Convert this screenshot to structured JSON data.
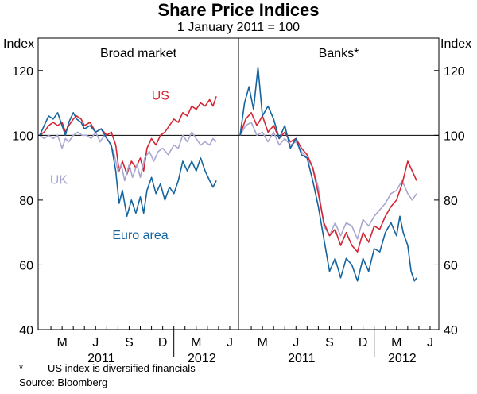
{
  "chart_data": {
    "type": "line",
    "title": "Share Price Indices",
    "subtitle": "1 January 2011 = 100",
    "ylabel_left": "Index",
    "ylabel_right": "Index",
    "ylim": [
      40,
      130
    ],
    "yticks": [
      40,
      60,
      80,
      100,
      120
    ],
    "reference_line": 100,
    "xlim": [
      0,
      17.5
    ],
    "x_unit": "months since 1 January 2011",
    "month_ticks": [
      {
        "label": "M",
        "x": 2
      },
      {
        "label": "J",
        "x": 5
      },
      {
        "label": "S",
        "x": 8
      },
      {
        "label": "D",
        "x": 11
      },
      {
        "label": "M",
        "x": 14
      },
      {
        "label": "J",
        "x": 17
      }
    ],
    "year_labels": [
      {
        "label": "2011",
        "x": 5.5
      },
      {
        "label": "2012",
        "x": 14.5
      }
    ],
    "panels": [
      {
        "title": "Broad market",
        "series": [
          {
            "name": "US",
            "color": "#d62532",
            "points": [
              [
                0,
                100
              ],
              [
                0.4,
                101
              ],
              [
                0.8,
                103
              ],
              [
                1.2,
                104
              ],
              [
                1.6,
                103
              ],
              [
                2,
                104
              ],
              [
                2.3,
                101
              ],
              [
                2.6,
                103
              ],
              [
                3,
                105
              ],
              [
                3.3,
                106
              ],
              [
                3.7,
                105
              ],
              [
                4,
                103
              ],
              [
                4.5,
                104
              ],
              [
                5,
                101
              ],
              [
                5.5,
                102
              ],
              [
                6,
                100
              ],
              [
                6.4,
                101
              ],
              [
                6.8,
                97
              ],
              [
                7.1,
                89
              ],
              [
                7.4,
                92
              ],
              [
                7.8,
                88
              ],
              [
                8.2,
                92
              ],
              [
                8.6,
                90
              ],
              [
                9,
                93
              ],
              [
                9.3,
                89
              ],
              [
                9.6,
                96
              ],
              [
                10,
                99
              ],
              [
                10.4,
                97
              ],
              [
                10.8,
                100
              ],
              [
                11.2,
                101
              ],
              [
                11.6,
                103
              ],
              [
                12,
                105
              ],
              [
                12.4,
                104
              ],
              [
                12.8,
                107
              ],
              [
                13.2,
                106
              ],
              [
                13.6,
                109
              ],
              [
                14,
                108
              ],
              [
                14.4,
                110
              ],
              [
                14.8,
                109
              ],
              [
                15.2,
                111
              ],
              [
                15.5,
                109
              ],
              [
                15.8,
                112
              ]
            ],
            "label": {
              "text": "US",
              "x": 10.8,
              "y": 111
            }
          },
          {
            "name": "UK",
            "color": "#a9a7cf",
            "points": [
              [
                0,
                100
              ],
              [
                0.4,
                99
              ],
              [
                0.8,
                100
              ],
              [
                1.2,
                99
              ],
              [
                1.6,
                100
              ],
              [
                2,
                96
              ],
              [
                2.3,
                99
              ],
              [
                2.6,
                98
              ],
              [
                3,
                100
              ],
              [
                3.4,
                101
              ],
              [
                3.8,
                100
              ],
              [
                4.2,
                100
              ],
              [
                4.6,
                99
              ],
              [
                5,
                101
              ],
              [
                5.4,
                98
              ],
              [
                5.8,
                100
              ],
              [
                6.2,
                98
              ],
              [
                6.6,
                95
              ],
              [
                7,
                89
              ],
              [
                7.3,
                91
              ],
              [
                7.6,
                86
              ],
              [
                8,
                91
              ],
              [
                8.3,
                87
              ],
              [
                8.7,
                91
              ],
              [
                9,
                87
              ],
              [
                9.4,
                93
              ],
              [
                9.8,
                95
              ],
              [
                10.2,
                92
              ],
              [
                10.6,
                95
              ],
              [
                11,
                96
              ],
              [
                11.5,
                94
              ],
              [
                12,
                97
              ],
              [
                12.4,
                96
              ],
              [
                12.8,
                100
              ],
              [
                13.2,
                98
              ],
              [
                13.6,
                101
              ],
              [
                14,
                99
              ],
              [
                14.4,
                97
              ],
              [
                14.8,
                98
              ],
              [
                15.2,
                97
              ],
              [
                15.5,
                99
              ],
              [
                15.8,
                98
              ]
            ],
            "label": {
              "text": "UK",
              "x": 1.7,
              "y": 85
            }
          },
          {
            "name": "Euro area",
            "color": "#1464a0",
            "points": [
              [
                0,
                100
              ],
              [
                0.4,
                103
              ],
              [
                0.8,
                106
              ],
              [
                1.2,
                105
              ],
              [
                1.6,
                107
              ],
              [
                2,
                103
              ],
              [
                2.3,
                100
              ],
              [
                2.6,
                104
              ],
              [
                3,
                107
              ],
              [
                3.3,
                105
              ],
              [
                3.7,
                104
              ],
              [
                4,
                102
              ],
              [
                4.5,
                103
              ],
              [
                5,
                101
              ],
              [
                5.5,
                102
              ],
              [
                6,
                99
              ],
              [
                6.4,
                97
              ],
              [
                6.8,
                89
              ],
              [
                7.1,
                79
              ],
              [
                7.4,
                83
              ],
              [
                7.8,
                75
              ],
              [
                8.2,
                80
              ],
              [
                8.6,
                76
              ],
              [
                9,
                81
              ],
              [
                9.3,
                76
              ],
              [
                9.6,
                83
              ],
              [
                10,
                87
              ],
              [
                10.4,
                82
              ],
              [
                10.8,
                85
              ],
              [
                11.2,
                80
              ],
              [
                11.6,
                84
              ],
              [
                12,
                82
              ],
              [
                12.4,
                86
              ],
              [
                12.8,
                92
              ],
              [
                13.2,
                89
              ],
              [
                13.6,
                92
              ],
              [
                14,
                89
              ],
              [
                14.4,
                93
              ],
              [
                14.8,
                89
              ],
              [
                15.2,
                86
              ],
              [
                15.5,
                84
              ],
              [
                15.8,
                86
              ]
            ],
            "label": {
              "text": "Euro area",
              "x": 9,
              "y": 68
            }
          }
        ]
      },
      {
        "title": "Banks*",
        "series": [
          {
            "name": "UK",
            "color": "#a9a7cf",
            "points": [
              [
                0,
                100
              ],
              [
                0.5,
                103
              ],
              [
                1,
                104
              ],
              [
                1.5,
                100
              ],
              [
                2,
                101
              ],
              [
                2.5,
                98
              ],
              [
                3,
                101
              ],
              [
                3.5,
                97
              ],
              [
                4,
                99
              ],
              [
                4.5,
                97
              ],
              [
                5,
                98
              ],
              [
                5.5,
                95
              ],
              [
                6,
                93
              ],
              [
                6.5,
                90
              ],
              [
                7,
                84
              ],
              [
                7.5,
                72
              ],
              [
                8,
                69
              ],
              [
                8.5,
                73
              ],
              [
                9,
                69
              ],
              [
                9.5,
                73
              ],
              [
                10,
                72
              ],
              [
                10.5,
                68
              ],
              [
                11,
                74
              ],
              [
                11.5,
                72
              ],
              [
                12,
                75
              ],
              [
                12.5,
                77
              ],
              [
                13,
                79
              ],
              [
                13.5,
                82
              ],
              [
                14,
                83
              ],
              [
                14.5,
                86
              ],
              [
                15,
                82
              ],
              [
                15.4,
                80
              ],
              [
                15.8,
                82
              ]
            ]
          },
          {
            "name": "US",
            "color": "#d62532",
            "points": [
              [
                0,
                100
              ],
              [
                0.5,
                105
              ],
              [
                1,
                107
              ],
              [
                1.5,
                103
              ],
              [
                2,
                106
              ],
              [
                2.5,
                101
              ],
              [
                3,
                103
              ],
              [
                3.5,
                99
              ],
              [
                4,
                101
              ],
              [
                4.5,
                98
              ],
              [
                5,
                99
              ],
              [
                5.5,
                96
              ],
              [
                6,
                94
              ],
              [
                6.5,
                90
              ],
              [
                7,
                82
              ],
              [
                7.5,
                73
              ],
              [
                8,
                69
              ],
              [
                8.5,
                71
              ],
              [
                9,
                66
              ],
              [
                9.5,
                70
              ],
              [
                10,
                66
              ],
              [
                10.5,
                64
              ],
              [
                11,
                70
              ],
              [
                11.5,
                67
              ],
              [
                12,
                72
              ],
              [
                12.5,
                71
              ],
              [
                13,
                75
              ],
              [
                13.5,
                78
              ],
              [
                14,
                80
              ],
              [
                14.5,
                85
              ],
              [
                15,
                92
              ],
              [
                15.4,
                89
              ],
              [
                15.8,
                86
              ]
            ]
          },
          {
            "name": "Euro area",
            "color": "#1464a0",
            "points": [
              [
                0,
                100
              ],
              [
                0.4,
                110
              ],
              [
                0.8,
                115
              ],
              [
                1.2,
                108
              ],
              [
                1.6,
                121
              ],
              [
                2,
                106
              ],
              [
                2.5,
                109
              ],
              [
                3,
                105
              ],
              [
                3.5,
                99
              ],
              [
                4,
                103
              ],
              [
                4.5,
                96
              ],
              [
                5,
                99
              ],
              [
                5.5,
                94
              ],
              [
                6,
                93
              ],
              [
                6.5,
                86
              ],
              [
                7,
                78
              ],
              [
                7.5,
                68
              ],
              [
                8,
                58
              ],
              [
                8.5,
                62
              ],
              [
                9,
                56
              ],
              [
                9.5,
                62
              ],
              [
                10,
                60
              ],
              [
                10.5,
                55
              ],
              [
                11,
                62
              ],
              [
                11.5,
                58
              ],
              [
                12,
                65
              ],
              [
                12.5,
                64
              ],
              [
                13,
                70
              ],
              [
                13.5,
                73
              ],
              [
                14,
                69
              ],
              [
                14.3,
                75
              ],
              [
                14.6,
                70
              ],
              [
                15,
                66
              ],
              [
                15.3,
                58
              ],
              [
                15.6,
                55
              ],
              [
                15.8,
                56
              ]
            ]
          }
        ]
      }
    ],
    "notes": [
      {
        "mark": "*",
        "text": "US index is diversified financials"
      },
      {
        "text": "Source: Bloomberg"
      }
    ]
  }
}
